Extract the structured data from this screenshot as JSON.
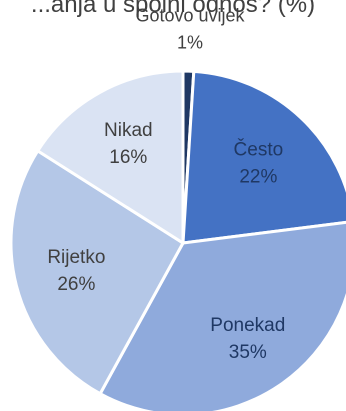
{
  "chart_data": {
    "type": "pie",
    "title": "...anja u spolni odnos? (%)",
    "slices": [
      {
        "label": "Gotovo uvijek",
        "value": 1,
        "display": "1%",
        "color": "#1f3864",
        "label_color": "#404040"
      },
      {
        "label": "Često",
        "value": 22,
        "display": "22%",
        "color": "#4472c4",
        "label_color": "#1f3864"
      },
      {
        "label": "Ponekad",
        "value": 35,
        "display": "35%",
        "color": "#8faadc",
        "label_color": "#1f3864"
      },
      {
        "label": "Rijetko",
        "value": 26,
        "display": "26%",
        "color": "#b4c7e7",
        "label_color": "#404040"
      },
      {
        "label": "Nikad",
        "value": 16,
        "display": "16%",
        "color": "#dae3f3",
        "label_color": "#404040"
      }
    ],
    "start_angle_deg": 0,
    "direction": "clockwise",
    "legend": "none"
  }
}
